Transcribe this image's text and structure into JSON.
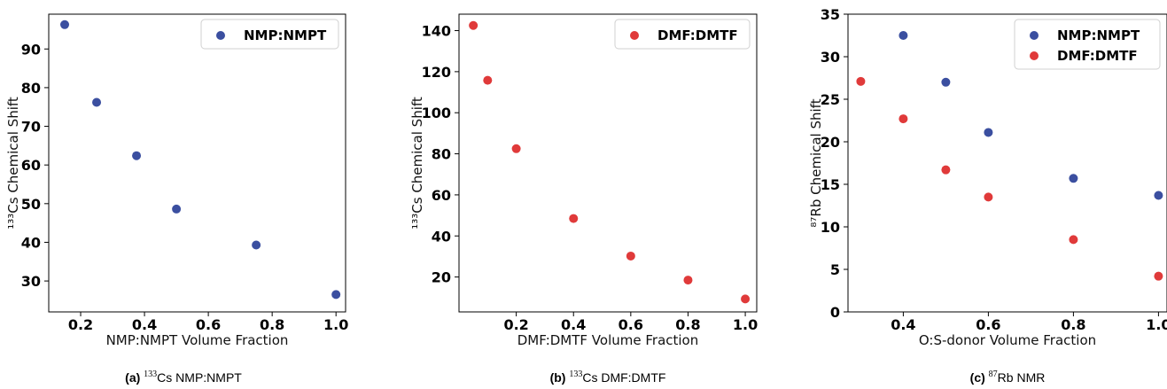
{
  "chart_data": [
    {
      "type": "scatter",
      "ylabel": "¹³³Cs Chemical Shift",
      "xlabel": "NMP:NMPT Volume Fraction",
      "xlim": [
        0.1,
        1.03
      ],
      "ylim": [
        22,
        99
      ],
      "xticks": [
        "0.2",
        "0.4",
        "0.6",
        "0.8",
        "1.0"
      ],
      "yticks": [
        "30",
        "40",
        "50",
        "60",
        "70",
        "80",
        "90"
      ],
      "legend_position": "upper right",
      "series": [
        {
          "name": "NMP:NMPT",
          "color": "#3b4fa0",
          "x": [
            0.15,
            0.25,
            0.375,
            0.5,
            0.75,
            1.0
          ],
          "y": [
            96.3,
            76.2,
            62.4,
            48.6,
            39.3,
            26.5
          ]
        }
      ],
      "caption": {
        "letter": "(a)",
        "sup": "133",
        "text": "Cs NMP:NMPT"
      }
    },
    {
      "type": "scatter",
      "ylabel": "¹³³Cs Chemical Shift",
      "xlabel": "DMF:DMTF Volume Fraction",
      "xlim": [
        0,
        1.04
      ],
      "ylim": [
        3,
        148
      ],
      "xticks": [
        "0.2",
        "0.4",
        "0.6",
        "0.8",
        "1.0"
      ],
      "yticks": [
        "20",
        "40",
        "60",
        "80",
        "100",
        "120",
        "140"
      ],
      "legend_position": "upper right",
      "series": [
        {
          "name": "DMF:DMTF",
          "color": "#e03a3a",
          "x": [
            0.05,
            0.1,
            0.2,
            0.4,
            0.6,
            0.8,
            1.0
          ],
          "y": [
            142.5,
            115.8,
            82.5,
            48.5,
            30.2,
            18.5,
            9.3
          ]
        }
      ],
      "caption": {
        "letter": "(b)",
        "sup": "133",
        "text": "Cs DMF:DMTF"
      }
    },
    {
      "type": "scatter",
      "ylabel": "⁸⁷Rb Chemical Shift",
      "xlabel": "O:S-donor Volume Fraction",
      "xlim": [
        0.27,
        1.02
      ],
      "ylim": [
        0,
        35
      ],
      "xticks": [
        "0.4",
        "0.6",
        "0.8",
        "1.0"
      ],
      "yticks": [
        "0",
        "5",
        "10",
        "15",
        "20",
        "25",
        "30",
        "35"
      ],
      "legend_position": "upper right",
      "series": [
        {
          "name": "NMP:NMPT",
          "color": "#3b4fa0",
          "x": [
            0.4,
            0.5,
            0.6,
            0.8,
            1.0
          ],
          "y": [
            32.5,
            27.0,
            21.1,
            15.7,
            13.7
          ]
        },
        {
          "name": "DMF:DMTF",
          "color": "#e03a3a",
          "x": [
            0.3,
            0.4,
            0.5,
            0.6,
            0.8,
            1.0
          ],
          "y": [
            27.1,
            22.7,
            16.7,
            13.5,
            8.5,
            4.2
          ]
        }
      ],
      "caption": {
        "letter": "(c)",
        "sup": "87",
        "text": "Rb NMR"
      }
    }
  ]
}
